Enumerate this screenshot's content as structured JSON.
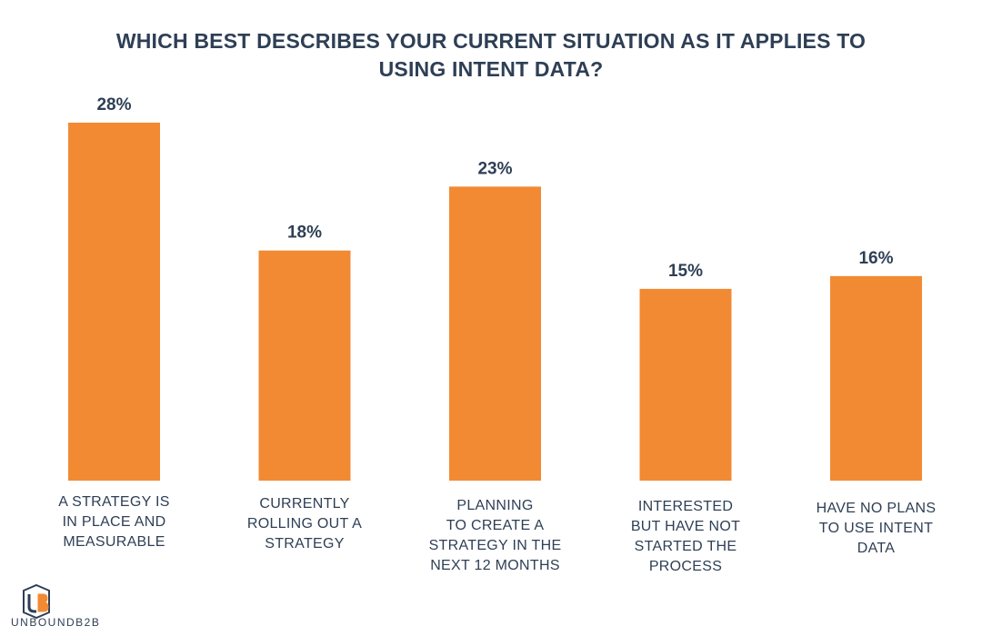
{
  "chart_data": {
    "type": "bar",
    "title": "WHICH BEST DESCRIBES YOUR CURRENT SITUATION AS IT APPLIES TO USING INTENT DATA?",
    "categories": [
      "A STRATEGY IS IN PLACE AND MEASURABLE",
      "CURRENTLY ROLLING OUT A STRATEGY",
      "PLANNING TO CREATE A STRATEGY IN THE NEXT 12 MONTHS",
      "INTERESTED BUT HAVE NOT STARTED THE PROCESS",
      "HAVE NO PLANS TO USE INTENT DATA"
    ],
    "category_lines": [
      [
        "A STRATEGY IS",
        "IN PLACE AND",
        "MEASURABLE"
      ],
      [
        "CURRENTLY",
        "ROLLING OUT A",
        "STRATEGY"
      ],
      [
        "PLANNING",
        "TO CREATE A",
        "STRATEGY IN THE",
        "NEXT 12 MONTHS"
      ],
      [
        "INTERESTED",
        "BUT HAVE NOT",
        "STARTED THE",
        "PROCESS"
      ],
      [
        "HAVE NO PLANS",
        "TO USE INTENT",
        "DATA"
      ]
    ],
    "values": [
      28,
      18,
      23,
      15,
      16
    ],
    "value_labels": [
      "28%",
      "18%",
      "23%",
      "15%",
      "16%"
    ],
    "unit": "%",
    "xlabel": "",
    "ylabel": "",
    "ylim": [
      0,
      28
    ],
    "grid": false,
    "bar_color": "#f28a33",
    "text_color": "#2e3f55"
  },
  "branding": {
    "logo_text": "UNBOUNDB2B",
    "logo_mark": "UB"
  }
}
